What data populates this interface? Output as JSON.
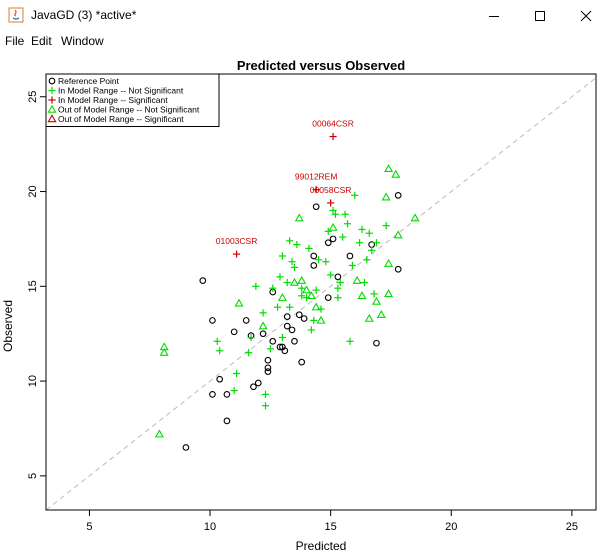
{
  "window": {
    "title": "JavaGD (3) *active*",
    "controls": [
      "minimize-icon",
      "maximize-icon",
      "close-icon"
    ]
  },
  "menu": {
    "file": "File",
    "edit": "Edit",
    "window": "Window"
  },
  "chart_data": {
    "type": "scatter",
    "title": "Predicted versus Observed",
    "xlabel": "Predicted",
    "ylabel": "Observed",
    "xlim": [
      3.2,
      26.0
    ],
    "ylim": [
      3.2,
      26.2
    ],
    "xticks": [
      5,
      10,
      15,
      20,
      25
    ],
    "yticks": [
      5,
      10,
      15,
      20,
      25
    ],
    "grid": false,
    "reference_line": "y = x (dashed grey)",
    "legend_position": "top-left",
    "legend": [
      {
        "label": "Reference Point",
        "marker": "circle",
        "color": "#000000"
      },
      {
        "label": "In Model Range -- Not Significant",
        "marker": "plus",
        "color": "#00dd00"
      },
      {
        "label": "In Model Range -- Significant",
        "marker": "plus",
        "color": "#cc0000"
      },
      {
        "label": "Out of Model Range -- Not Significant",
        "marker": "triangle",
        "color": "#00dd00"
      },
      {
        "label": "Out of Model Range -- Significant",
        "marker": "triangle",
        "color": "#cc0000"
      }
    ],
    "series": [
      {
        "name": "Reference Point",
        "marker": "circle",
        "color": "#000000",
        "points": [
          [
            9.0,
            6.5
          ],
          [
            10.7,
            7.9
          ],
          [
            10.1,
            9.3
          ],
          [
            10.7,
            9.3
          ],
          [
            10.4,
            10.1
          ],
          [
            11.8,
            9.7
          ],
          [
            12.0,
            9.9
          ],
          [
            12.4,
            10.5
          ],
          [
            12.4,
            10.7
          ],
          [
            13.0,
            11.8
          ],
          [
            13.8,
            11.0
          ],
          [
            12.4,
            11.1
          ],
          [
            13.5,
            12.1
          ],
          [
            13.4,
            12.7
          ],
          [
            12.9,
            11.8
          ],
          [
            12.6,
            12.1
          ],
          [
            12.2,
            12.5
          ],
          [
            11.7,
            12.4
          ],
          [
            11.0,
            12.6
          ],
          [
            10.1,
            13.2
          ],
          [
            11.5,
            13.2
          ],
          [
            13.2,
            12.9
          ],
          [
            13.2,
            13.4
          ],
          [
            13.7,
            13.5
          ],
          [
            13.9,
            13.3
          ],
          [
            14.9,
            14.4
          ],
          [
            15.3,
            15.5
          ],
          [
            14.3,
            16.1
          ],
          [
            14.3,
            16.6
          ],
          [
            15.1,
            17.5
          ],
          [
            14.9,
            17.3
          ],
          [
            16.7,
            17.2
          ],
          [
            15.8,
            16.6
          ],
          [
            9.7,
            15.3
          ],
          [
            12.6,
            14.7
          ],
          [
            17.8,
            15.9
          ],
          [
            16.9,
            12.0
          ],
          [
            14.4,
            19.2
          ],
          [
            17.8,
            19.8
          ],
          [
            13.1,
            11.6
          ]
        ]
      },
      {
        "name": "In Model Range -- Not Significant",
        "marker": "plus",
        "color": "#00dd00",
        "points": [
          [
            10.3,
            12.1
          ],
          [
            10.4,
            11.6
          ],
          [
            11.0,
            9.5
          ],
          [
            11.1,
            10.4
          ],
          [
            11.6,
            11.5
          ],
          [
            11.7,
            12.3
          ],
          [
            11.9,
            15.0
          ],
          [
            12.2,
            13.6
          ],
          [
            12.3,
            8.7
          ],
          [
            12.3,
            9.3
          ],
          [
            12.5,
            11.7
          ],
          [
            12.6,
            14.9
          ],
          [
            12.8,
            13.9
          ],
          [
            12.9,
            15.5
          ],
          [
            13.0,
            16.6
          ],
          [
            13.2,
            15.2
          ],
          [
            13.3,
            17.4
          ],
          [
            13.4,
            16.3
          ],
          [
            13.5,
            16.0
          ],
          [
            13.6,
            17.2
          ],
          [
            13.8,
            14.9
          ],
          [
            13.8,
            14.5
          ],
          [
            14.0,
            14.4
          ],
          [
            14.1,
            17.0
          ],
          [
            14.2,
            12.7
          ],
          [
            14.3,
            13.2
          ],
          [
            14.4,
            14.8
          ],
          [
            14.5,
            16.4
          ],
          [
            14.8,
            16.3
          ],
          [
            14.9,
            17.9
          ],
          [
            15.0,
            15.6
          ],
          [
            15.1,
            19.0
          ],
          [
            15.2,
            18.8
          ],
          [
            15.3,
            14.9
          ],
          [
            15.4,
            15.2
          ],
          [
            15.5,
            17.6
          ],
          [
            15.6,
            18.8
          ],
          [
            15.7,
            18.3
          ],
          [
            15.8,
            12.1
          ],
          [
            15.9,
            16.1
          ],
          [
            16.0,
            19.8
          ],
          [
            16.2,
            17.3
          ],
          [
            16.3,
            18.0
          ],
          [
            16.4,
            15.2
          ],
          [
            16.5,
            16.4
          ],
          [
            16.6,
            17.8
          ],
          [
            16.7,
            16.9
          ],
          [
            16.9,
            17.3
          ],
          [
            17.3,
            18.2
          ],
          [
            13.0,
            12.3
          ],
          [
            13.3,
            13.9
          ],
          [
            14.6,
            13.8
          ],
          [
            15.3,
            14.4
          ],
          [
            16.8,
            14.6
          ]
        ]
      },
      {
        "name": "In Model Range -- Significant",
        "marker": "plus",
        "color": "#cc0000",
        "points": [
          {
            "x": 11.1,
            "y": 16.7,
            "label": "01003CSR"
          },
          {
            "x": 15.0,
            "y": 19.4,
            "label": "00058CSR"
          },
          {
            "x": 14.4,
            "y": 20.1,
            "label": "99012REM"
          },
          {
            "x": 15.1,
            "y": 22.9,
            "label": "00064CSR"
          }
        ]
      },
      {
        "name": "Out of Model Range -- Not Significant",
        "marker": "triangle",
        "color": "#00dd00",
        "points": [
          [
            7.9,
            7.2
          ],
          [
            8.1,
            11.5
          ],
          [
            8.1,
            11.8
          ],
          [
            11.2,
            14.1
          ],
          [
            12.2,
            12.9
          ],
          [
            13.0,
            14.4
          ],
          [
            13.5,
            15.2
          ],
          [
            13.7,
            18.6
          ],
          [
            13.8,
            15.3
          ],
          [
            14.0,
            14.8
          ],
          [
            14.2,
            14.5
          ],
          [
            14.4,
            13.9
          ],
          [
            14.6,
            13.2
          ],
          [
            15.1,
            18.1
          ],
          [
            16.1,
            15.3
          ],
          [
            16.3,
            14.5
          ],
          [
            16.6,
            13.3
          ],
          [
            16.9,
            14.2
          ],
          [
            17.1,
            13.5
          ],
          [
            17.3,
            19.7
          ],
          [
            17.4,
            14.6
          ],
          [
            17.4,
            16.2
          ],
          [
            17.4,
            21.2
          ],
          [
            17.7,
            20.9
          ],
          [
            18.5,
            18.6
          ],
          [
            17.8,
            17.7
          ]
        ]
      },
      {
        "name": "Out of Model Range -- Significant",
        "marker": "triangle",
        "color": "#cc0000",
        "points": []
      }
    ]
  }
}
